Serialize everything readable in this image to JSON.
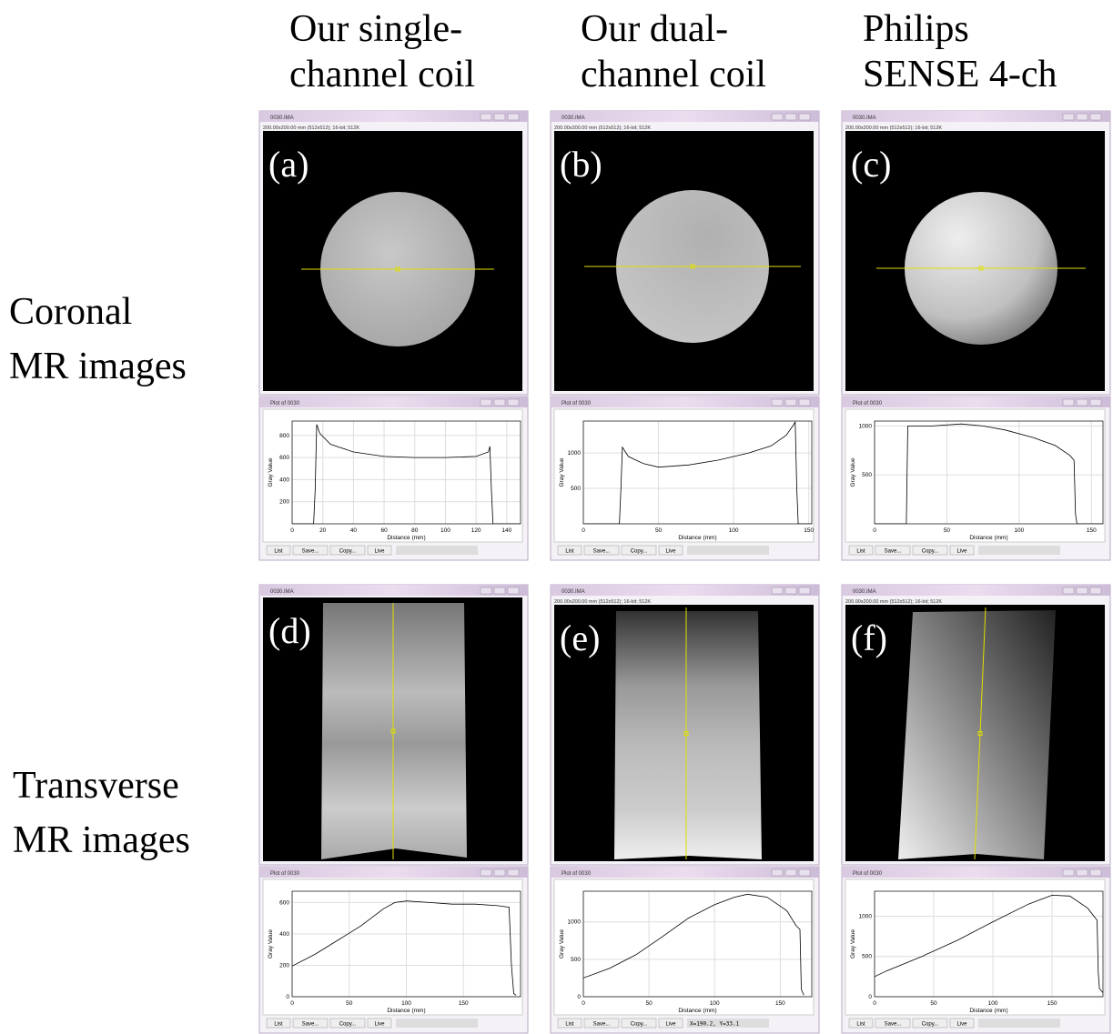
{
  "column_headers": [
    [
      "Our single-",
      "channel coil"
    ],
    [
      "Our dual-",
      "channel coil"
    ],
    [
      "Philips",
      "SENSE 4-ch"
    ]
  ],
  "row_labels": [
    [
      "Coronal",
      "MR images"
    ],
    [
      "Transverse",
      "MR images"
    ]
  ],
  "window_title": "0030.IMA",
  "plot_title": "Plot of 0030",
  "plot_buttons": [
    "List",
    "Save...",
    "Copy...",
    "Live"
  ],
  "x_label": "Distance (mm)",
  "y_label": "Gray Value",
  "panels": [
    {
      "label": "(a)",
      "info": "200.00x200.00 mm (512x512); 16-bit; 512K",
      "plot": {
        "xlim": [
          0,
          149
        ],
        "ylim": [
          0,
          930
        ],
        "xticks": [
          0,
          20,
          40,
          60,
          80,
          100,
          120,
          140
        ],
        "yticks": [
          200,
          400,
          600,
          800
        ],
        "x": [
          0,
          14,
          15,
          16,
          18,
          25,
          40,
          60,
          80,
          100,
          120,
          128,
          129,
          130,
          131,
          149
        ],
        "values": [
          0,
          0,
          300,
          900,
          820,
          720,
          650,
          610,
          600,
          600,
          610,
          650,
          700,
          300,
          0,
          0
        ]
      }
    },
    {
      "label": "(b)",
      "info": "200.00x200.00 mm (512x512); 16-bit; 512K",
      "plot": {
        "xlim": [
          0,
          152
        ],
        "ylim": [
          0,
          1450
        ],
        "xticks": [
          0,
          50,
          100,
          150
        ],
        "yticks": [
          500,
          1000
        ],
        "x": [
          0,
          24,
          25,
          26,
          30,
          40,
          50,
          70,
          90,
          110,
          125,
          135,
          140,
          141,
          142,
          143,
          152
        ],
        "values": [
          0,
          0,
          500,
          1080,
          950,
          850,
          800,
          830,
          900,
          1000,
          1100,
          1250,
          1400,
          1440,
          500,
          0,
          0
        ]
      }
    },
    {
      "label": "(c)",
      "info": "200.00x200.00 mm (512x512); 16-bit; 512K",
      "plot": {
        "xlim": [
          0,
          158
        ],
        "ylim": [
          0,
          1050
        ],
        "xticks": [
          0,
          50,
          100,
          150
        ],
        "yticks": [
          500,
          1000
        ],
        "x": [
          0,
          22,
          23,
          40,
          60,
          75,
          90,
          110,
          125,
          135,
          138,
          139,
          140,
          158
        ],
        "values": [
          0,
          0,
          1000,
          1000,
          1020,
          1000,
          960,
          880,
          800,
          700,
          650,
          100,
          0,
          0
        ]
      }
    },
    {
      "label": "(d)",
      "plot": {
        "xlim": [
          0,
          200
        ],
        "ylim": [
          0,
          672
        ],
        "xticks": [
          0,
          50,
          100,
          150
        ],
        "yticks": [
          0,
          200,
          400,
          600
        ],
        "x": [
          0,
          20,
          40,
          60,
          80,
          90,
          100,
          120,
          140,
          160,
          180,
          190,
          192,
          194,
          196
        ],
        "values": [
          195,
          270,
          360,
          450,
          560,
          600,
          610,
          600,
          590,
          590,
          580,
          570,
          200,
          20,
          10
        ]
      }
    },
    {
      "label": "(e)",
      "info": "200.00x200.00 mm (512x512); 16-bit; 512K",
      "status": "X=190.2, Y=33.1",
      "plot": {
        "xlim": [
          0,
          174
        ],
        "ylim": [
          0,
          1410
        ],
        "xticks": [
          0,
          50,
          100,
          150
        ],
        "yticks": [
          0,
          500,
          1000
        ],
        "x": [
          0,
          20,
          40,
          60,
          80,
          100,
          115,
          125,
          140,
          155,
          162,
          165,
          166,
          168
        ],
        "values": [
          250,
          380,
          560,
          800,
          1050,
          1230,
          1330,
          1370,
          1330,
          1150,
          950,
          900,
          100,
          20
        ]
      }
    },
    {
      "label": "(f)",
      "info": "200.00x200.00 mm (512x512); 16-bit; 512K",
      "plot": {
        "xlim": [
          0,
          193
        ],
        "ylim": [
          0,
          1310
        ],
        "xticks": [
          0,
          50,
          100,
          150
        ],
        "yticks": [
          0,
          500,
          1000
        ],
        "x": [
          0,
          10,
          40,
          70,
          100,
          130,
          150,
          165,
          180,
          188,
          189,
          190,
          193
        ],
        "values": [
          250,
          320,
          500,
          700,
          930,
          1150,
          1260,
          1250,
          1100,
          950,
          300,
          100,
          50
        ]
      }
    }
  ]
}
